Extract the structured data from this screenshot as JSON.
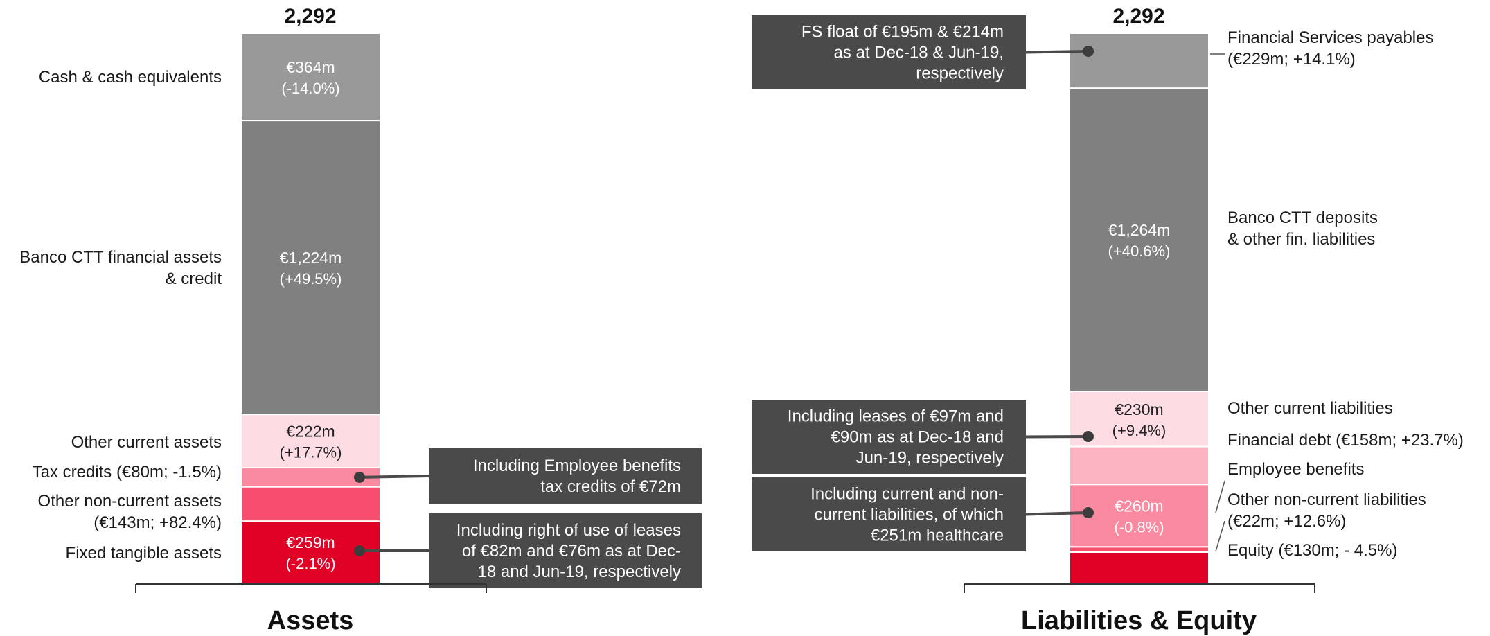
{
  "chart_data": [
    {
      "type": "bar",
      "stacked": true,
      "title": "Assets",
      "total_label": "2,292",
      "total": 2292,
      "segments": [
        {
          "name": "Cash & cash equivalents",
          "label": "Cash & cash equivalents",
          "value": 364,
          "value_label": "€364m",
          "change_label": "(-14.0%)",
          "color": "#999999"
        },
        {
          "name": "Banco CTT financial assets & credit",
          "label": "Banco CTT financial assets\n& credit",
          "value": 1224,
          "value_label": "€1,224m",
          "change_label": "(+49.5%)",
          "color": "#808080"
        },
        {
          "name": "Other current assets",
          "label": "Other current assets",
          "value": 222,
          "value_label": "€222m",
          "change_label": "(+17.7%)",
          "color": "#FDDDE3"
        },
        {
          "name": "Tax credits",
          "label": "Tax credits (€80m; -1.5%)",
          "value": 80,
          "value_label": "",
          "change_label": "",
          "color": "#F98AA0"
        },
        {
          "name": "Other non-current assets",
          "label": "Other non-current assets\n(€143m; +82.4%)",
          "value": 143,
          "value_label": "",
          "change_label": "",
          "color": "#F74E6E"
        },
        {
          "name": "Fixed tangible assets",
          "label": "Fixed tangible assets",
          "value": 259,
          "value_label": "€259m",
          "change_label": "(-2.1%)",
          "color": "#E10026"
        }
      ],
      "callouts": [
        {
          "text": "Including Employee benefits\ntax credits of €72m",
          "segment": "Tax credits"
        },
        {
          "text": "Including right of use of leases\nof €82m and €76m as at Dec-\n18 and Jun-19, respectively",
          "segment": "Fixed tangible assets"
        }
      ]
    },
    {
      "type": "bar",
      "stacked": true,
      "title": "Liabilities & Equity",
      "total_label": "2,292",
      "total": 2292,
      "segments": [
        {
          "name": "Financial Services payables",
          "label": "Financial Services payables\n(€229m; +14.1%)",
          "value": 229,
          "value_label": "",
          "change_label": "",
          "color": "#999999"
        },
        {
          "name": "Banco CTT deposits & other fin. liabilities",
          "label": "Banco CTT deposits\n& other fin. liabilities",
          "value": 1264,
          "value_label": "€1,264m",
          "change_label": "(+40.6%)",
          "color": "#808080"
        },
        {
          "name": "Other current liabilities",
          "label": "Other current liabilities",
          "value": 230,
          "value_label": "€230m",
          "change_label": "(+9.4%)",
          "color": "#FDDDE3"
        },
        {
          "name": "Financial debt",
          "label": "Financial debt  (€158m; +23.7%)",
          "value": 158,
          "value_label": "",
          "change_label": "",
          "color": "#FCB4C2"
        },
        {
          "name": "Employee benefits",
          "label": "Employee benefits",
          "value": 260,
          "value_label": "€260m",
          "change_label": "(-0.8%)",
          "color": "#F98AA0"
        },
        {
          "name": "Other non-current liabilities",
          "label": "Other non-current liabilities\n(€22m; +12.6%)",
          "value": 22,
          "value_label": "",
          "change_label": "",
          "color": "#F74E6E"
        },
        {
          "name": "Equity",
          "label": "Equity (€130m; - 4.5%)",
          "value": 130,
          "value_label": "",
          "change_label": "",
          "color": "#E10026"
        }
      ],
      "callouts": [
        {
          "text": "FS float of €195m & €214m\nas at Dec-18 & Jun-19,\nrespectively",
          "segment": "Financial Services payables"
        },
        {
          "text": "Including leases of €97m and\n€90m as at Dec-18 and\nJun-19, respectively",
          "segment": "Other current liabilities"
        },
        {
          "text": "Including current and non-\ncurrent liabilities, of which\n€251m healthcare",
          "segment": "Employee benefits"
        }
      ]
    }
  ]
}
